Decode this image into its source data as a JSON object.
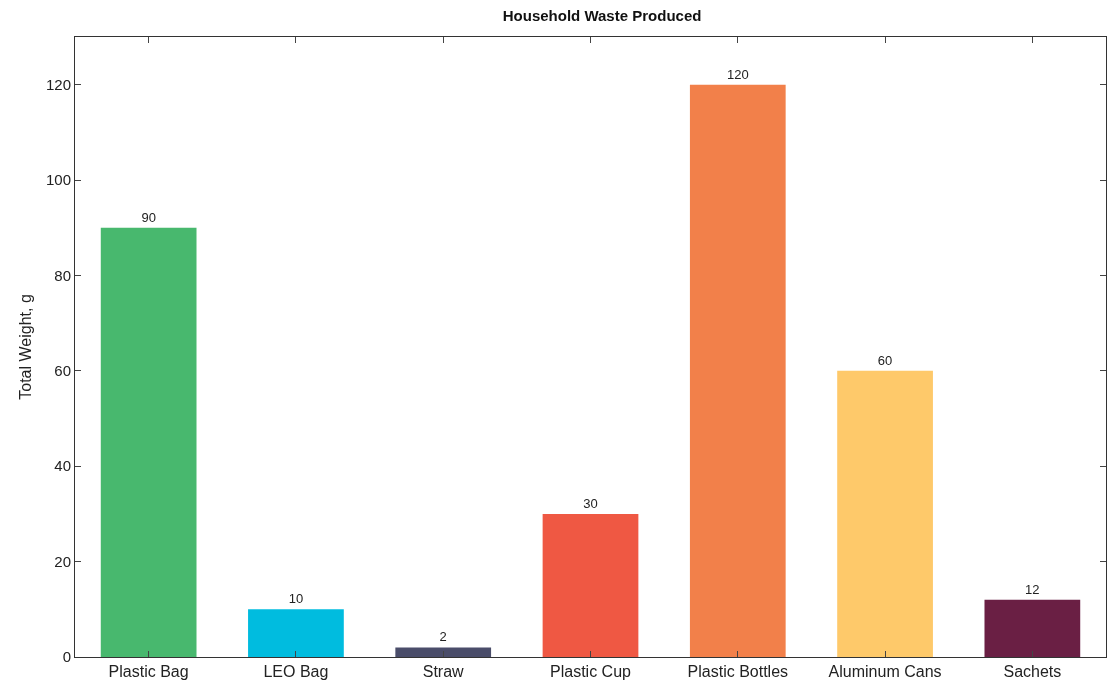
{
  "chart_data": {
    "type": "bar",
    "title": "Household Waste Produced",
    "ylabel": "Total Weight, g",
    "categories": [
      "Plastic Bag",
      "LEO Bag",
      "Straw",
      "Plastic Cup",
      "Plastic Bottles",
      "Aluminum Cans",
      "Sachets"
    ],
    "values": [
      90,
      10,
      2,
      30,
      120,
      60,
      12
    ],
    "colors": [
      "#48b86e",
      "#00bcdf",
      "#4a4d6a",
      "#ef5843",
      "#f2804a",
      "#fec96a",
      "#6a1f44"
    ],
    "ylim": [
      0,
      130
    ],
    "yticks": [
      0,
      20,
      40,
      60,
      80,
      100,
      120
    ],
    "data_labels": true
  }
}
